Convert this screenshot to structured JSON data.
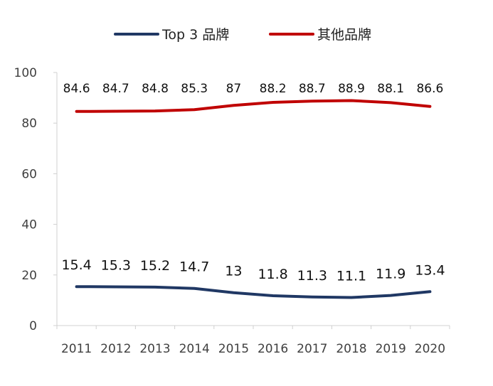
{
  "chart_data": {
    "type": "line",
    "title": "",
    "xlabel": "",
    "ylabel": "",
    "categories": [
      "2011",
      "2012",
      "2013",
      "2014",
      "2015",
      "2016",
      "2017",
      "2018",
      "2019",
      "2020"
    ],
    "ylim": [
      0,
      100
    ],
    "yticks": [
      0,
      20,
      40,
      60,
      80,
      100
    ],
    "grid": false,
    "legend_position": "top-center",
    "series": [
      {
        "name": "Top 3 品牌",
        "color": "#203864",
        "values": [
          15.4,
          15.3,
          15.2,
          14.7,
          13,
          11.8,
          11.3,
          11.1,
          11.9,
          13.4
        ],
        "labels": [
          "15.4",
          "15.3",
          "15.2",
          "14.7",
          "13",
          "11.8",
          "11.3",
          "11.1",
          "11.9",
          "13.4"
        ]
      },
      {
        "name": "其他品牌",
        "color": "#C00000",
        "values": [
          84.6,
          84.7,
          84.8,
          85.3,
          87,
          88.2,
          88.7,
          88.9,
          88.1,
          86.6
        ],
        "labels": [
          "84.6",
          "84.7",
          "84.8",
          "85.3",
          "87",
          "88.2",
          "88.7",
          "88.9",
          "88.1",
          "86.6"
        ]
      }
    ]
  }
}
